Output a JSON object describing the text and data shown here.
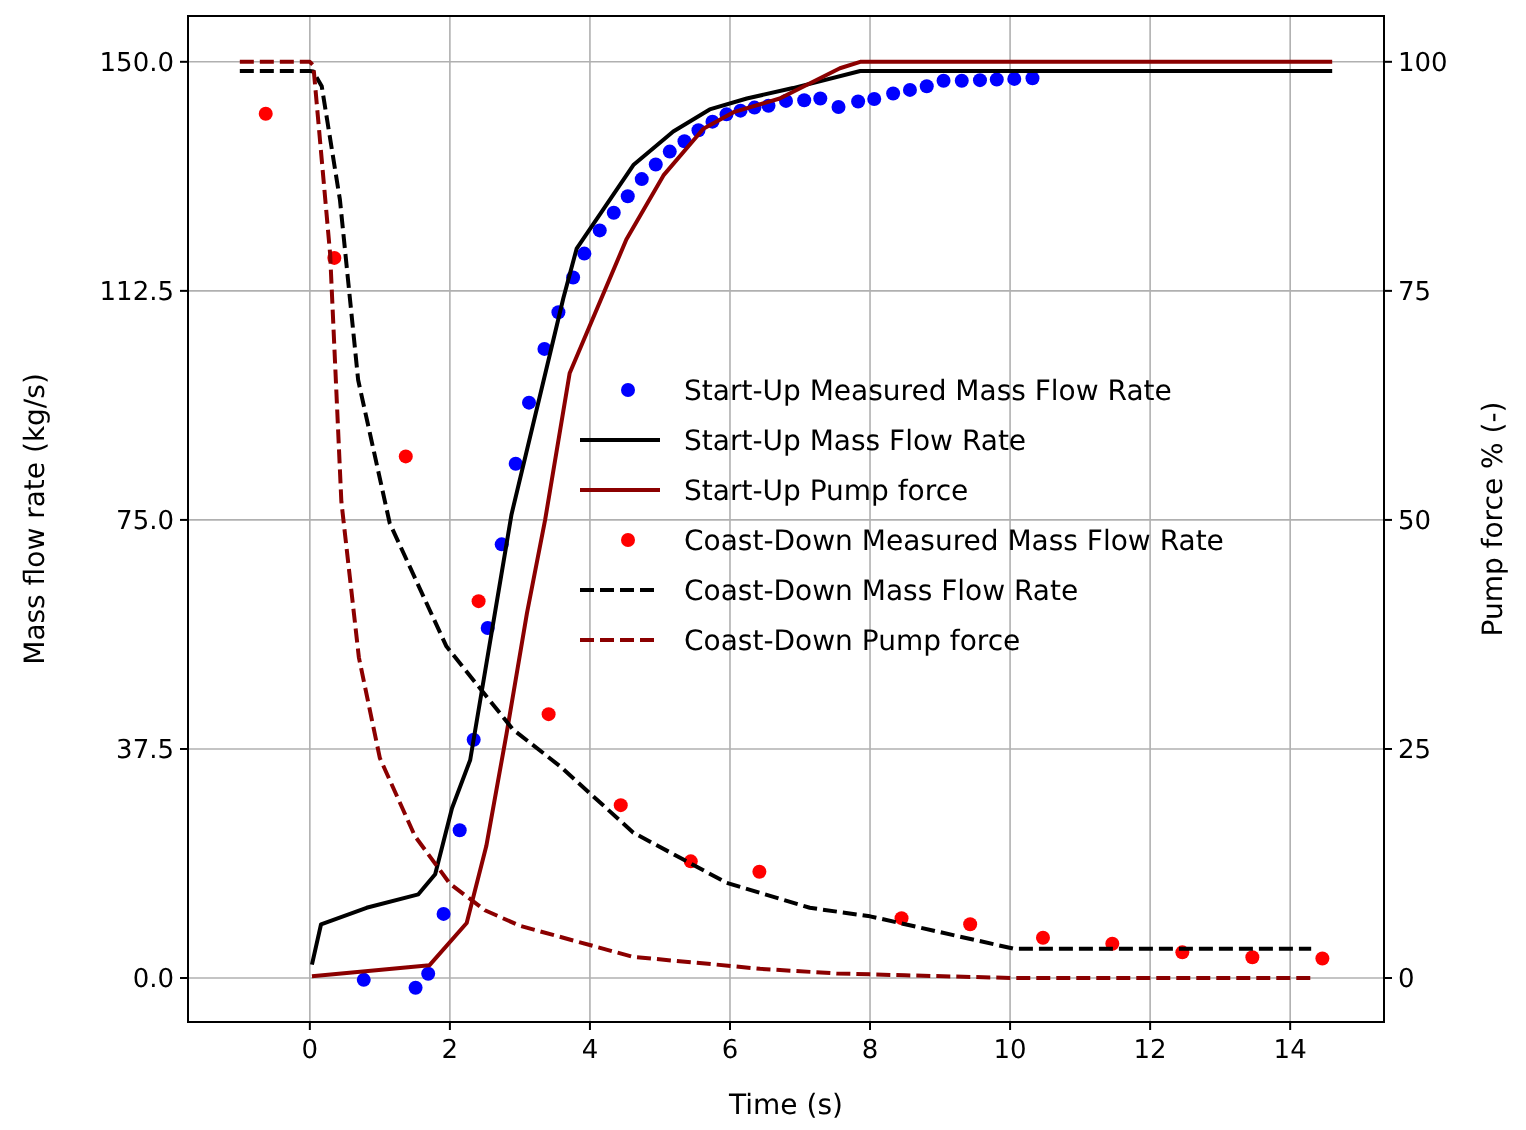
{
  "chart_data": {
    "type": "line",
    "xlabel": "Time (s)",
    "ylabel": "Mass flow rate (kg/s)",
    "y2label": "Pump force % (-)",
    "xlim": [
      -1.74,
      15.34
    ],
    "xticks": [
      0,
      2,
      4,
      6,
      8,
      10,
      12,
      14
    ],
    "ylim": [
      -7.2,
      157.5
    ],
    "yticks": [
      {
        "value": 0,
        "label": "0.0"
      },
      {
        "value": 37.5,
        "label": "37.5"
      },
      {
        "value": 75,
        "label": "75.0"
      },
      {
        "value": 112.5,
        "label": "112.5"
      },
      {
        "value": 150,
        "label": "150.0"
      }
    ],
    "y2lim": [
      -4.8,
      105
    ],
    "y2ticks": [
      0,
      25,
      50,
      75,
      100
    ],
    "grid": true,
    "legend": "right",
    "series": [
      {
        "name": "Start-Up Measured Mass Flow Rate",
        "type": "scatter",
        "marker": "circle",
        "color": "#0000ff",
        "x": [
          0.77,
          1.51,
          1.69,
          1.91,
          2.14,
          2.34,
          2.54,
          2.74,
          2.94,
          3.13,
          3.35,
          3.55,
          3.76,
          3.92,
          4.14,
          4.34,
          4.54,
          4.74,
          4.94,
          5.14,
          5.35,
          5.55,
          5.75,
          5.95,
          6.15,
          6.35,
          6.55,
          6.8,
          7.06,
          7.29,
          7.55,
          7.83,
          8.06,
          8.33,
          8.57,
          8.81,
          9.05,
          9.31,
          9.57,
          9.81,
          10.06,
          10.32
        ],
        "values": [
          -0.3,
          -1.6,
          0.7,
          10.5,
          24.2,
          39,
          57.3,
          71,
          84.2,
          94.2,
          103,
          109,
          114.7,
          118.6,
          122.4,
          125.3,
          128,
          130.8,
          133.2,
          135.3,
          137,
          138.8,
          140.2,
          141.4,
          142,
          142.5,
          142.8,
          143.6,
          143.7,
          144,
          142.6,
          143.5,
          143.9,
          144.8,
          145.4,
          146,
          146.9,
          146.9,
          147,
          147.1,
          147.2,
          147.3
        ]
      },
      {
        "name": "Start-Up Mass Flow Rate",
        "type": "line",
        "line_style": "solid",
        "color": "#000000",
        "x": [
          0.03,
          0.16,
          0.81,
          1.55,
          1.79,
          2.03,
          2.29,
          2.88,
          3.62,
          3.81,
          4.62,
          5.19,
          5.71,
          6.24,
          6.9,
          7.86,
          14.6
        ],
        "values": [
          2.2,
          8.8,
          11.5,
          13.7,
          17,
          27.8,
          35.7,
          75.9,
          111.3,
          119.4,
          133.1,
          138.6,
          142.2,
          144,
          145.7,
          148.5,
          148.5
        ]
      },
      {
        "name": "Start-Up Pump force",
        "type": "line",
        "line_style": "solid",
        "axis": "y2",
        "color": "#8b0000",
        "x": [
          0.03,
          1.71,
          2.24,
          2.52,
          2.81,
          3.1,
          3.36,
          3.71,
          4.52,
          5.05,
          5.62,
          6.05,
          6.71,
          7.57,
          7.86,
          14.6
        ],
        "values": [
          0.2,
          1.4,
          6,
          14.4,
          26.7,
          39.8,
          50,
          66,
          80.6,
          87.6,
          92.7,
          94.5,
          96,
          99.3,
          100,
          100
        ]
      },
      {
        "name": "Coast-Down Measured Mass Flow Rate",
        "type": "scatter",
        "marker": "circle",
        "color": "#ff0000",
        "x": [
          -0.63,
          0.35,
          1.37,
          2.41,
          3.41,
          4.44,
          5.44,
          6.42,
          8.45,
          9.43,
          10.47,
          11.46,
          12.46,
          13.46,
          14.46
        ],
        "values": [
          141.5,
          117.9,
          85.4,
          61.7,
          43.2,
          28.3,
          19.1,
          17.4,
          9.8,
          8.8,
          6.6,
          5.6,
          4.2,
          3.4,
          3.2
        ]
      },
      {
        "name": "Coast-Down Mass Flow Rate",
        "type": "line",
        "line_style": "dashed",
        "color": "#000000",
        "x": [
          -1,
          0,
          0.05,
          0.17,
          0.43,
          0.69,
          1.14,
          1.95,
          2.9,
          3.57,
          4.62,
          5.95,
          7.14,
          8,
          10.05,
          14.3
        ],
        "values": [
          148.5,
          148.5,
          148.4,
          146,
          127.4,
          97.9,
          74.5,
          54.3,
          40.7,
          34.7,
          23.8,
          15.6,
          11.5,
          10.1,
          4.8,
          4.8
        ]
      },
      {
        "name": "Coast-Down Pump force",
        "type": "line",
        "line_style": "dashed",
        "axis": "y2",
        "color": "#8b0000",
        "x": [
          -1,
          0,
          0.05,
          0.29,
          0.45,
          0.7,
          1,
          1.5,
          2,
          2.5,
          3,
          3.76,
          4.62,
          5.76,
          6.43,
          7.52,
          8.5,
          10.05,
          14.3
        ],
        "values": [
          100,
          100,
          99.6,
          79,
          52,
          35,
          24,
          15.5,
          10.3,
          7.4,
          5.7,
          4.1,
          2.3,
          1.5,
          1,
          0.5,
          0.3,
          0,
          0
        ]
      }
    ]
  }
}
